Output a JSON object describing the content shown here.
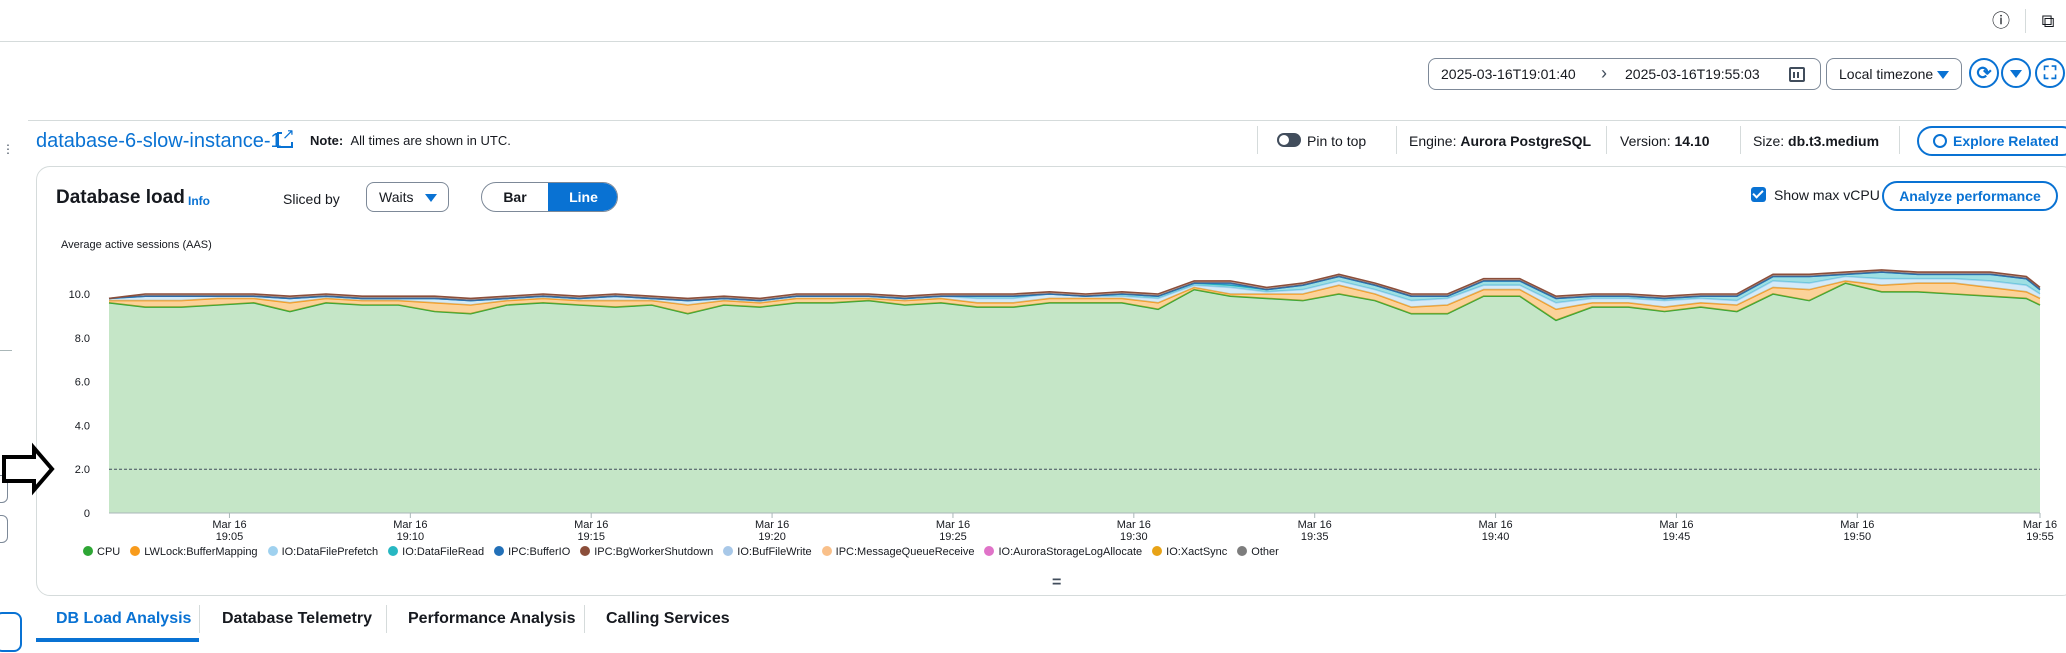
{
  "header": {
    "info_icon": "info-circle-icon",
    "panel_icon": "external-panel-icon"
  },
  "daterange": {
    "start": "2025-03-16T19:01:40",
    "separator": "›",
    "end": "2025-03-16T19:55:03"
  },
  "timezone": {
    "selected": "Local timezone"
  },
  "instance": {
    "name": "database-6-slow-instance-1",
    "note_label": "Note:",
    "note_text": "All times are shown in UTC.",
    "pin_label": "Pin to top",
    "engine_label": "Engine:",
    "engine_value": "Aurora PostgreSQL",
    "version_label": "Version:",
    "version_value": "14.10",
    "size_label": "Size:",
    "size_value": "db.t3.medium",
    "explore_label": "Explore Related"
  },
  "db_load": {
    "title": "Database load",
    "info": "Info",
    "sliced_label": "Sliced by",
    "sliced_value": "Waits",
    "seg_bar": "Bar",
    "seg_line": "Line",
    "max_vcpu_label": "Show max vCPU",
    "max_vcpu_checked": true,
    "analyze_label": "Analyze performance"
  },
  "chart_data": {
    "type": "area",
    "ylabel": "Average active sessions (AAS)",
    "ylim": [
      0,
      11
    ],
    "yticks": [
      "0",
      "2.0",
      "4.0",
      "6.0",
      "8.0",
      "10.0"
    ],
    "xticks": [
      {
        "t": 3.33,
        "d": "Mar 16",
        "h": "19:05"
      },
      {
        "t": 8.33,
        "d": "Mar 16",
        "h": "19:10"
      },
      {
        "t": 13.33,
        "d": "Mar 16",
        "h": "19:15"
      },
      {
        "t": 18.33,
        "d": "Mar 16",
        "h": "19:20"
      },
      {
        "t": 23.33,
        "d": "Mar 16",
        "h": "19:25"
      },
      {
        "t": 28.33,
        "d": "Mar 16",
        "h": "19:30"
      },
      {
        "t": 33.33,
        "d": "Mar 16",
        "h": "19:35"
      },
      {
        "t": 38.33,
        "d": "Mar 16",
        "h": "19:40"
      },
      {
        "t": 43.33,
        "d": "Mar 16",
        "h": "19:45"
      },
      {
        "t": 48.33,
        "d": "Mar 16",
        "h": "19:50"
      },
      {
        "t": 53.38,
        "d": "Mar 16",
        "h": "19:55"
      }
    ],
    "max_vcpu": 2.0,
    "x_minutes": [
      0,
      1,
      2,
      3,
      4,
      5,
      6,
      7,
      8,
      9,
      10,
      11,
      12,
      13,
      14,
      15,
      16,
      17,
      18,
      19,
      20,
      21,
      22,
      23,
      24,
      25,
      26,
      27,
      28,
      29,
      30,
      31,
      32,
      33,
      34,
      35,
      36,
      37,
      38,
      39,
      40,
      41,
      42,
      43,
      44,
      45,
      46,
      47,
      48,
      49,
      50,
      51,
      52,
      53,
      53.38
    ],
    "series": [
      {
        "name": "CPU",
        "color": "#2ea635",
        "values": [
          9.6,
          9.4,
          9.4,
          9.5,
          9.6,
          9.2,
          9.6,
          9.5,
          9.5,
          9.2,
          9.1,
          9.5,
          9.6,
          9.5,
          9.4,
          9.5,
          9.1,
          9.5,
          9.4,
          9.6,
          9.6,
          9.7,
          9.5,
          9.6,
          9.4,
          9.4,
          9.6,
          9.6,
          9.6,
          9.3,
          10.2,
          9.9,
          9.8,
          9.7,
          10.0,
          9.7,
          9.1,
          9.1,
          9.9,
          9.9,
          8.8,
          9.4,
          9.4,
          9.2,
          9.4,
          9.2,
          10.0,
          9.7,
          10.5,
          10.1,
          10.1,
          10.0,
          9.9,
          9.8,
          9.5
        ]
      },
      {
        "name": "LWLock:BufferMapping",
        "color": "#f89b1c",
        "values": [
          0.1,
          0.3,
          0.3,
          0.3,
          0.2,
          0.4,
          0.2,
          0.2,
          0.2,
          0.4,
          0.4,
          0.2,
          0.2,
          0.2,
          0.3,
          0.2,
          0.4,
          0.2,
          0.2,
          0.2,
          0.2,
          0.1,
          0.2,
          0.2,
          0.2,
          0.2,
          0.2,
          0.2,
          0.2,
          0.3,
          0.1,
          0.1,
          0.2,
          0.3,
          0.4,
          0.3,
          0.3,
          0.4,
          0.3,
          0.3,
          0.5,
          0.2,
          0.2,
          0.2,
          0.2,
          0.3,
          0.3,
          0.5,
          0.1,
          0.3,
          0.4,
          0.5,
          0.4,
          0.3,
          0.3
        ]
      },
      {
        "name": "IO:DataFilePrefetch",
        "color": "#9fd1ef",
        "values": [
          0.1,
          0.2,
          0.2,
          0.1,
          0.1,
          0.2,
          0.1,
          0.1,
          0.1,
          0.2,
          0.2,
          0.1,
          0.1,
          0.1,
          0.2,
          0.1,
          0.2,
          0.1,
          0.1,
          0.1,
          0.1,
          0.1,
          0.1,
          0.1,
          0.2,
          0.2,
          0.2,
          0.1,
          0.1,
          0.2,
          0.1,
          0.3,
          0.1,
          0.2,
          0.2,
          0.2,
          0.3,
          0.3,
          0.2,
          0.2,
          0.3,
          0.2,
          0.2,
          0.3,
          0.2,
          0.2,
          0.3,
          0.3,
          0.2,
          0.3,
          0.2,
          0.2,
          0.3,
          0.3,
          0.2
        ]
      },
      {
        "name": "IO:DataFileRead",
        "color": "#27b7c2",
        "values": [
          0.0,
          0.0,
          0.0,
          0.0,
          0.0,
          0.0,
          0.0,
          0.0,
          0.0,
          0.0,
          0.0,
          0.0,
          0.0,
          0.0,
          0.0,
          0.0,
          0.0,
          0.0,
          0.0,
          0.0,
          0.0,
          0.0,
          0.0,
          0.0,
          0.1,
          0.1,
          0.0,
          0.0,
          0.1,
          0.1,
          0.1,
          0.1,
          0.1,
          0.2,
          0.2,
          0.2,
          0.2,
          0.1,
          0.2,
          0.2,
          0.2,
          0.1,
          0.1,
          0.1,
          0.1,
          0.2,
          0.2,
          0.3,
          0.1,
          0.3,
          0.2,
          0.2,
          0.3,
          0.3,
          0.2
        ]
      },
      {
        "name": "IPC:BufferIO",
        "color": "#2270b8",
        "values": [
          0.0,
          0.0,
          0.0,
          0.0,
          0.0,
          0.0,
          0.0,
          0.0,
          0.0,
          0.0,
          0.0,
          0.0,
          0.0,
          0.0,
          0.0,
          0.0,
          0.0,
          0.0,
          0.0,
          0.0,
          0.0,
          0.0,
          0.0,
          0.0,
          0.0,
          0.0,
          0.0,
          0.0,
          0.0,
          0.0,
          0.0,
          0.1,
          0.0,
          0.0,
          0.0,
          0.0,
          0.0,
          0.0,
          0.0,
          0.0,
          0.0,
          0.0,
          0.0,
          0.0,
          0.0,
          0.0,
          0.0,
          0.0,
          0.0,
          0.0,
          0.0,
          0.0,
          0.0,
          0.0,
          0.0
        ]
      },
      {
        "name": "IPC:BgWorkerShutdown",
        "color": "#8b4e3a",
        "values": [
          0.0,
          0.1,
          0.1,
          0.1,
          0.1,
          0.1,
          0.1,
          0.1,
          0.1,
          0.1,
          0.1,
          0.1,
          0.1,
          0.1,
          0.1,
          0.1,
          0.1,
          0.1,
          0.1,
          0.1,
          0.1,
          0.1,
          0.1,
          0.1,
          0.1,
          0.1,
          0.1,
          0.1,
          0.1,
          0.1,
          0.1,
          0.1,
          0.1,
          0.1,
          0.1,
          0.1,
          0.1,
          0.1,
          0.1,
          0.1,
          0.1,
          0.1,
          0.1,
          0.1,
          0.1,
          0.1,
          0.1,
          0.1,
          0.1,
          0.1,
          0.1,
          0.1,
          0.1,
          0.1,
          0.1
        ]
      },
      {
        "name": "IO:BufFileWrite",
        "color": "#a8c8e8",
        "values": [
          0,
          0,
          0,
          0,
          0,
          0,
          0,
          0,
          0,
          0,
          0,
          0,
          0,
          0,
          0,
          0,
          0,
          0,
          0,
          0,
          0,
          0,
          0,
          0,
          0,
          0,
          0,
          0,
          0,
          0,
          0,
          0,
          0,
          0,
          0,
          0,
          0,
          0,
          0,
          0,
          0,
          0,
          0,
          0,
          0,
          0,
          0,
          0,
          0,
          0,
          0,
          0,
          0,
          0,
          0
        ]
      },
      {
        "name": "IPC:MessageQueueReceive",
        "color": "#f9c08a",
        "values": [
          0,
          0,
          0,
          0,
          0,
          0,
          0,
          0,
          0,
          0,
          0,
          0,
          0,
          0,
          0,
          0,
          0,
          0,
          0,
          0,
          0,
          0,
          0,
          0,
          0,
          0,
          0,
          0,
          0,
          0,
          0,
          0,
          0,
          0,
          0,
          0,
          0,
          0,
          0,
          0,
          0,
          0,
          0,
          0,
          0,
          0,
          0,
          0,
          0,
          0,
          0,
          0,
          0,
          0,
          0
        ]
      },
      {
        "name": "IO:AuroraStorageLogAllocate",
        "color": "#e073c8",
        "values": [
          0,
          0,
          0,
          0,
          0,
          0,
          0,
          0,
          0,
          0,
          0,
          0,
          0,
          0,
          0,
          0,
          0,
          0,
          0,
          0,
          0,
          0,
          0,
          0,
          0,
          0,
          0,
          0,
          0,
          0,
          0,
          0,
          0,
          0,
          0,
          0,
          0,
          0,
          0,
          0,
          0,
          0,
          0,
          0,
          0,
          0,
          0,
          0,
          0,
          0,
          0,
          0,
          0,
          0,
          0
        ]
      },
      {
        "name": "IO:XactSync",
        "color": "#e8a317",
        "values": [
          0,
          0,
          0,
          0,
          0,
          0,
          0,
          0,
          0,
          0,
          0,
          0,
          0,
          0,
          0,
          0,
          0,
          0,
          0,
          0,
          0,
          0,
          0,
          0,
          0,
          0,
          0,
          0,
          0,
          0,
          0,
          0,
          0,
          0,
          0,
          0,
          0,
          0,
          0,
          0,
          0,
          0,
          0,
          0,
          0,
          0,
          0,
          0,
          0,
          0,
          0,
          0,
          0,
          0,
          0
        ]
      },
      {
        "name": "Other",
        "color": "#7d7d7d",
        "values": [
          0,
          0,
          0,
          0,
          0,
          0,
          0,
          0,
          0,
          0,
          0,
          0,
          0,
          0,
          0,
          0,
          0,
          0,
          0,
          0,
          0,
          0,
          0,
          0,
          0,
          0,
          0,
          0,
          0,
          0,
          0,
          0,
          0,
          0,
          0,
          0,
          0,
          0,
          0,
          0,
          0,
          0,
          0,
          0,
          0,
          0,
          0,
          0,
          0,
          0,
          0,
          0,
          0,
          0,
          0
        ]
      }
    ],
    "legend_placement": "bottom",
    "grid": false
  },
  "tabs": [
    {
      "label": "DB Load Analysis",
      "active": true
    },
    {
      "label": "Database Telemetry",
      "active": false
    },
    {
      "label": "Performance Analysis",
      "active": false
    },
    {
      "label": "Calling Services",
      "active": false
    }
  ]
}
